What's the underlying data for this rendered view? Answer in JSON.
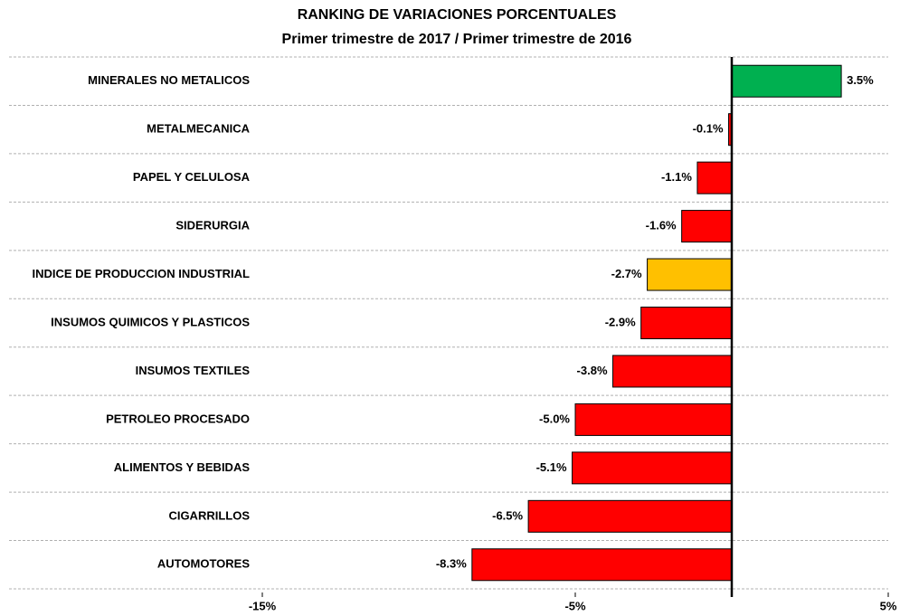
{
  "chart_data": {
    "type": "barh",
    "title": "RANKING DE VARIACIONES PORCENTUALES",
    "subtitle": "Primer trimestre de 2017 / Primer trimestre de 2016",
    "categories": [
      "MINERALES NO METALICOS",
      "METALMECANICA",
      "PAPEL Y CELULOSA",
      "SIDERURGIA",
      "INDICE DE PRODUCCION INDUSTRIAL",
      "INSUMOS QUIMICOS Y PLASTICOS",
      "INSUMOS TEXTILES",
      "PETROLEO PROCESADO",
      "ALIMENTOS Y BEBIDAS",
      "CIGARRILLOS",
      "AUTOMOTORES"
    ],
    "values": [
      3.5,
      -0.1,
      -1.1,
      -1.6,
      -2.7,
      -2.9,
      -3.8,
      -5.0,
      -5.1,
      -6.5,
      -8.3
    ],
    "value_labels": [
      "3.5%",
      "-0.1%",
      "-1.1%",
      "-1.6%",
      "-2.7%",
      "-2.9%",
      "-3.8%",
      "-5.0%",
      "-5.1%",
      "-6.5%",
      "-8.3%"
    ],
    "colors": [
      "#00b050",
      "#ff0000",
      "#ff0000",
      "#ff0000",
      "#ffc000",
      "#ff0000",
      "#ff0000",
      "#ff0000",
      "#ff0000",
      "#ff0000",
      "#ff0000"
    ],
    "xlim": [
      -15,
      5
    ],
    "xticks": [
      {
        "value": -15,
        "label": "-15%"
      },
      {
        "value": -5,
        "label": "-5%"
      },
      {
        "value": 5,
        "label": "5%"
      }
    ]
  }
}
